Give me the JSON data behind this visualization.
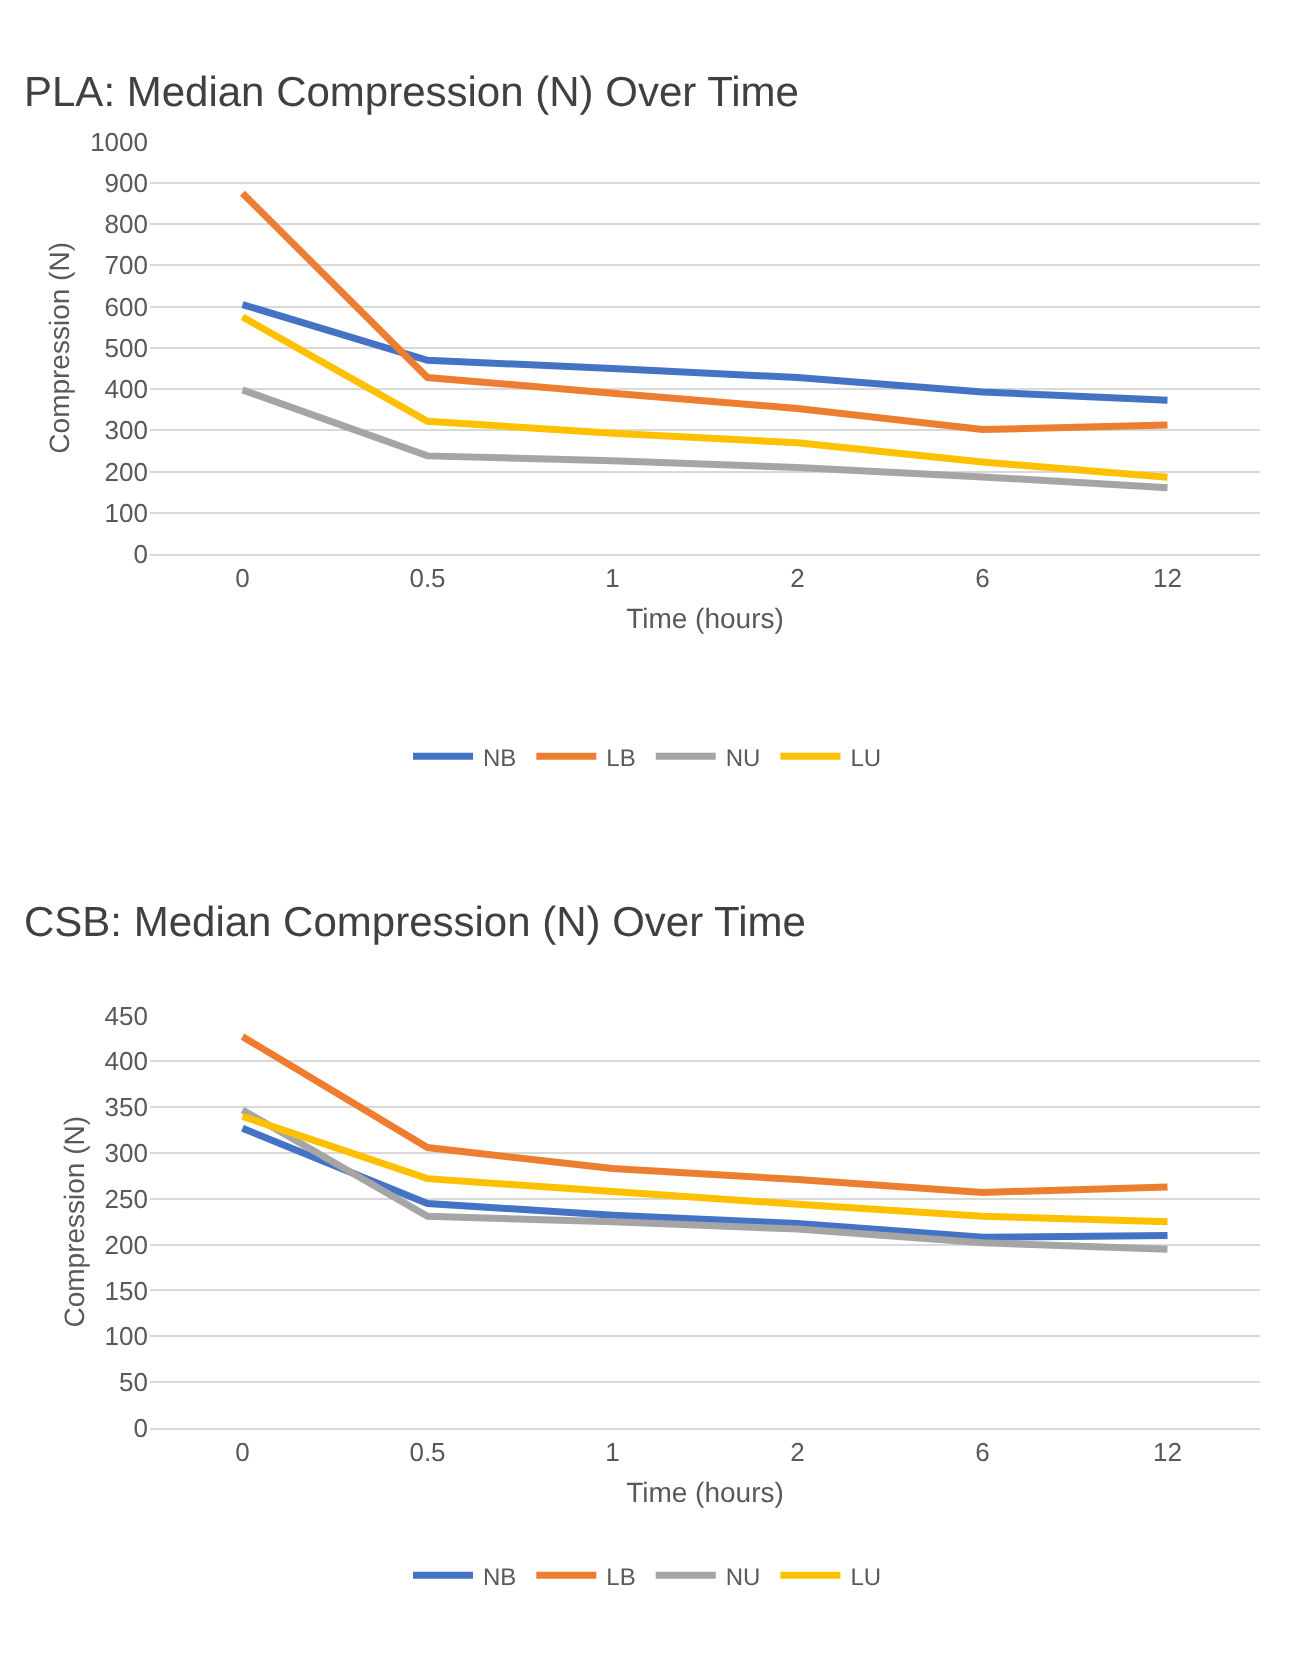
{
  "chart_data": [
    {
      "type": "line",
      "title": "PLA: Median Compression (N) Over Time",
      "xlabel": "Time (hours)",
      "ylabel": "Compression (N)",
      "categories": [
        "0",
        "0.5",
        "1",
        "2",
        "6",
        "12"
      ],
      "ylim": [
        0,
        1000
      ],
      "yticks": [
        0,
        100,
        200,
        300,
        400,
        500,
        600,
        700,
        800,
        900,
        1000
      ],
      "grid": "y",
      "legend": "bottom",
      "marker": "none",
      "line_style": "solid",
      "series": [
        {
          "name": "NB",
          "color": "#4472c4",
          "values": [
            605,
            470,
            450,
            428,
            393,
            373
          ]
        },
        {
          "name": "LB",
          "color": "#ed7d31",
          "values": [
            875,
            428,
            390,
            353,
            302,
            313
          ]
        },
        {
          "name": "NU",
          "color": "#a5a5a5",
          "values": [
            398,
            238,
            226,
            210,
            187,
            161
          ]
        },
        {
          "name": "LU",
          "color": "#ffc000",
          "values": [
            575,
            322,
            293,
            270,
            223,
            186
          ]
        }
      ]
    },
    {
      "type": "line",
      "title": "CSB: Median Compression (N) Over Time",
      "xlabel": "Time (hours)",
      "ylabel": "Compression (N)",
      "categories": [
        "0",
        "0.5",
        "1",
        "2",
        "6",
        "12"
      ],
      "ylim": [
        0,
        450
      ],
      "yticks": [
        0,
        50,
        100,
        150,
        200,
        250,
        300,
        350,
        400,
        450
      ],
      "grid": "y",
      "legend": "bottom",
      "marker": "none",
      "line_style": "solid",
      "series": [
        {
          "name": "NB",
          "color": "#4472c4",
          "values": [
            327,
            245,
            232,
            223,
            208,
            210
          ]
        },
        {
          "name": "LB",
          "color": "#ed7d31",
          "values": [
            427,
            306,
            283,
            271,
            257,
            263
          ]
        },
        {
          "name": "NU",
          "color": "#a5a5a5",
          "values": [
            347,
            231,
            225,
            217,
            202,
            195
          ]
        },
        {
          "name": "LU",
          "color": "#ffc000",
          "values": [
            340,
            272,
            258,
            244,
            231,
            225
          ]
        }
      ]
    }
  ]
}
